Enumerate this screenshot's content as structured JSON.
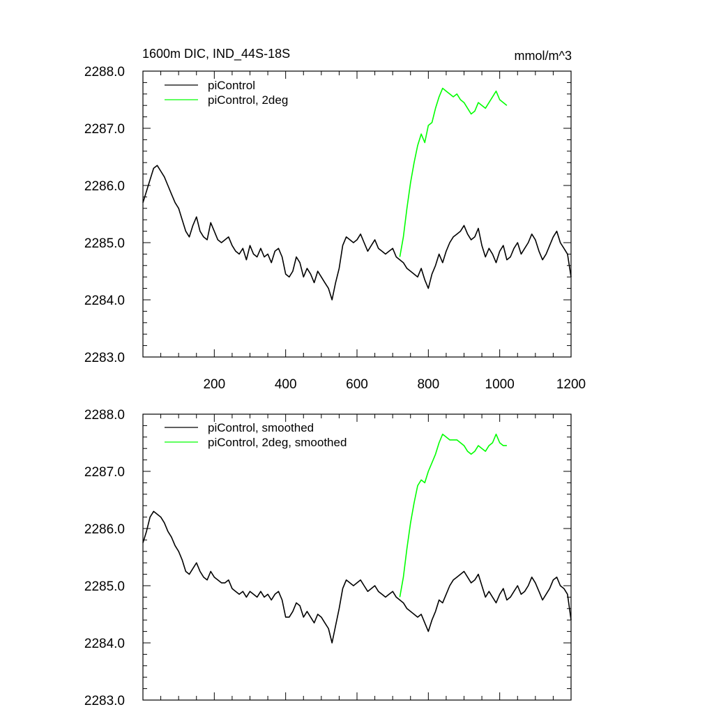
{
  "chart_data": [
    {
      "type": "line",
      "title": "1600m DIC, IND_44S-18S",
      "units": "mmol/m^3",
      "xlim": [
        0,
        1200
      ],
      "ylim": [
        2283.0,
        2288.0
      ],
      "xticks": [
        "200",
        "400",
        "600",
        "800",
        "1000",
        "1200"
      ],
      "yticks": [
        "2283.0",
        "2284.0",
        "2285.0",
        "2286.0",
        "2287.0",
        "2288.0"
      ],
      "show_xtick_labels": true,
      "legend_position": "top-left",
      "series": [
        {
          "name": "piControl",
          "color": "#000000",
          "x": [
            0,
            10,
            20,
            30,
            40,
            50,
            60,
            70,
            80,
            90,
            100,
            110,
            120,
            130,
            140,
            150,
            160,
            170,
            180,
            190,
            200,
            210,
            220,
            230,
            240,
            250,
            260,
            270,
            280,
            290,
            300,
            310,
            320,
            330,
            340,
            350,
            360,
            370,
            380,
            390,
            400,
            410,
            420,
            430,
            440,
            450,
            460,
            470,
            480,
            490,
            500,
            510,
            520,
            530,
            540,
            550,
            560,
            570,
            580,
            590,
            600,
            610,
            620,
            630,
            640,
            650,
            660,
            670,
            680,
            690,
            700,
            710,
            720,
            730,
            740,
            750,
            760,
            770,
            780,
            790,
            800,
            810,
            820,
            830,
            840,
            850,
            860,
            870,
            880,
            890,
            900,
            910,
            920,
            930,
            940,
            950,
            960,
            970,
            980,
            990,
            1000,
            1010,
            1020,
            1030,
            1040,
            1050,
            1060,
            1070,
            1080,
            1090,
            1100,
            1110,
            1120,
            1130,
            1140,
            1150,
            1160,
            1170,
            1180,
            1190,
            1200
          ],
          "values": [
            2285.7,
            2285.9,
            2286.1,
            2286.3,
            2286.35,
            2286.25,
            2286.15,
            2286.0,
            2285.85,
            2285.7,
            2285.6,
            2285.4,
            2285.2,
            2285.1,
            2285.3,
            2285.45,
            2285.2,
            2285.1,
            2285.05,
            2285.35,
            2285.2,
            2285.05,
            2285.0,
            2285.05,
            2285.1,
            2284.95,
            2284.85,
            2284.8,
            2284.9,
            2284.7,
            2284.95,
            2284.8,
            2284.75,
            2284.9,
            2284.75,
            2284.8,
            2284.65,
            2284.85,
            2284.9,
            2284.75,
            2284.45,
            2284.4,
            2284.5,
            2284.75,
            2284.65,
            2284.4,
            2284.55,
            2284.45,
            2284.3,
            2284.5,
            2284.4,
            2284.3,
            2284.2,
            2284.0,
            2284.3,
            2284.55,
            2284.95,
            2285.1,
            2285.05,
            2285.0,
            2285.05,
            2285.15,
            2285.0,
            2284.85,
            2284.95,
            2285.05,
            2284.9,
            2284.85,
            2284.8,
            2284.85,
            2284.9,
            2284.75,
            2284.7,
            2284.65,
            2284.55,
            2284.5,
            2284.45,
            2284.4,
            2284.55,
            2284.35,
            2284.2,
            2284.45,
            2284.6,
            2284.8,
            2284.65,
            2284.85,
            2285.0,
            2285.1,
            2285.15,
            2285.2,
            2285.3,
            2285.15,
            2285.05,
            2285.1,
            2285.25,
            2284.95,
            2284.75,
            2284.9,
            2284.8,
            2284.65,
            2284.85,
            2284.95,
            2284.7,
            2284.75,
            2284.9,
            2285.0,
            2284.8,
            2284.9,
            2285.0,
            2285.15,
            2285.05,
            2284.85,
            2284.7,
            2284.8,
            2284.95,
            2285.1,
            2285.2,
            2285.0,
            2284.9,
            2284.8,
            2284.4
          ]
        },
        {
          "name": "piControl, 2deg",
          "color": "#00ff00",
          "x": [
            720,
            730,
            740,
            750,
            760,
            770,
            780,
            790,
            800,
            810,
            820,
            830,
            840,
            850,
            860,
            870,
            880,
            890,
            900,
            910,
            920,
            930,
            940,
            950,
            960,
            970,
            980,
            990,
            1000,
            1010,
            1020
          ],
          "values": [
            2284.75,
            2285.1,
            2285.6,
            2286.05,
            2286.4,
            2286.7,
            2286.9,
            2286.75,
            2287.05,
            2287.1,
            2287.35,
            2287.55,
            2287.7,
            2287.65,
            2287.6,
            2287.55,
            2287.6,
            2287.5,
            2287.45,
            2287.35,
            2287.25,
            2287.3,
            2287.45,
            2287.4,
            2287.35,
            2287.45,
            2287.55,
            2287.65,
            2287.5,
            2287.45,
            2287.4
          ]
        }
      ]
    },
    {
      "type": "line",
      "xlim": [
        0,
        1200
      ],
      "ylim": [
        2283.0,
        2288.0
      ],
      "yticks": [
        "2283.0",
        "2284.0",
        "2285.0",
        "2286.0",
        "2287.0",
        "2288.0"
      ],
      "show_xtick_labels": false,
      "legend_position": "top-left",
      "series": [
        {
          "name": "piControl, smoothed",
          "color": "#000000",
          "x": [
            0,
            10,
            20,
            30,
            40,
            50,
            60,
            70,
            80,
            90,
            100,
            110,
            120,
            130,
            140,
            150,
            160,
            170,
            180,
            190,
            200,
            210,
            220,
            230,
            240,
            250,
            260,
            270,
            280,
            290,
            300,
            310,
            320,
            330,
            340,
            350,
            360,
            370,
            380,
            390,
            400,
            410,
            420,
            430,
            440,
            450,
            460,
            470,
            480,
            490,
            500,
            510,
            520,
            530,
            540,
            550,
            560,
            570,
            580,
            590,
            600,
            610,
            620,
            630,
            640,
            650,
            660,
            670,
            680,
            690,
            700,
            710,
            720,
            730,
            740,
            750,
            760,
            770,
            780,
            790,
            800,
            810,
            820,
            830,
            840,
            850,
            860,
            870,
            880,
            890,
            900,
            910,
            920,
            930,
            940,
            950,
            960,
            970,
            980,
            990,
            1000,
            1010,
            1020,
            1030,
            1040,
            1050,
            1060,
            1070,
            1080,
            1090,
            1100,
            1110,
            1120,
            1130,
            1140,
            1150,
            1160,
            1170,
            1180,
            1190,
            1200
          ],
          "values": [
            2285.75,
            2285.95,
            2286.2,
            2286.3,
            2286.25,
            2286.2,
            2286.1,
            2285.95,
            2285.85,
            2285.7,
            2285.6,
            2285.45,
            2285.25,
            2285.2,
            2285.3,
            2285.4,
            2285.25,
            2285.15,
            2285.1,
            2285.25,
            2285.15,
            2285.1,
            2285.05,
            2285.05,
            2285.1,
            2284.95,
            2284.9,
            2284.85,
            2284.9,
            2284.8,
            2284.9,
            2284.85,
            2284.8,
            2284.9,
            2284.8,
            2284.85,
            2284.75,
            2284.85,
            2284.9,
            2284.75,
            2284.45,
            2284.45,
            2284.55,
            2284.7,
            2284.65,
            2284.45,
            2284.55,
            2284.45,
            2284.35,
            2284.5,
            2284.45,
            2284.35,
            2284.25,
            2284.0,
            2284.3,
            2284.6,
            2284.95,
            2285.1,
            2285.05,
            2285.0,
            2285.05,
            2285.1,
            2285.0,
            2284.9,
            2284.95,
            2285.0,
            2284.9,
            2284.85,
            2284.8,
            2284.85,
            2284.9,
            2284.8,
            2284.75,
            2284.7,
            2284.6,
            2284.55,
            2284.5,
            2284.45,
            2284.5,
            2284.35,
            2284.2,
            2284.4,
            2284.55,
            2284.75,
            2284.7,
            2284.85,
            2285.0,
            2285.1,
            2285.15,
            2285.2,
            2285.25,
            2285.15,
            2285.05,
            2285.1,
            2285.2,
            2285.0,
            2284.8,
            2284.9,
            2284.8,
            2284.7,
            2284.85,
            2284.95,
            2284.75,
            2284.8,
            2284.9,
            2285.0,
            2284.85,
            2284.9,
            2285.0,
            2285.15,
            2285.05,
            2284.9,
            2284.75,
            2284.85,
            2284.95,
            2285.1,
            2285.15,
            2285.0,
            2284.95,
            2284.85,
            2284.4
          ]
        },
        {
          "name": "piControl, 2deg, smoothed",
          "color": "#00ff00",
          "x": [
            720,
            730,
            740,
            750,
            760,
            770,
            780,
            790,
            800,
            810,
            820,
            830,
            840,
            850,
            860,
            870,
            880,
            890,
            900,
            910,
            920,
            930,
            940,
            950,
            960,
            970,
            980,
            990,
            1000,
            1010,
            1020
          ],
          "values": [
            2284.8,
            2285.15,
            2285.65,
            2286.1,
            2286.45,
            2286.75,
            2286.85,
            2286.8,
            2287.0,
            2287.15,
            2287.3,
            2287.5,
            2287.65,
            2287.6,
            2287.55,
            2287.55,
            2287.55,
            2287.5,
            2287.45,
            2287.35,
            2287.3,
            2287.35,
            2287.45,
            2287.4,
            2287.35,
            2287.45,
            2287.5,
            2287.65,
            2287.5,
            2287.45,
            2287.45
          ]
        }
      ]
    }
  ]
}
